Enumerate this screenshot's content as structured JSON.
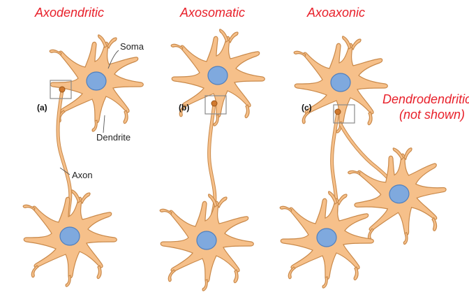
{
  "titles": {
    "axodendritic": "Axodendritic",
    "axosomatic": "Axosomatic",
    "axoaxonic": "Axoaxonic",
    "dendrodendritic_line1": "Dendrodendritic",
    "dendrodendritic_line2": "(not shown)"
  },
  "labels": {
    "soma": "Soma",
    "dendrite": "Dendrite",
    "axon": "Axon"
  },
  "panels": {
    "a": "(a)",
    "b": "(b)",
    "c": "(c)"
  },
  "colors": {
    "title_red": "#e8202a",
    "cell_fill": "#f6c08a",
    "cell_stroke": "#c9894a",
    "nucleus": "#7fa9de"
  }
}
